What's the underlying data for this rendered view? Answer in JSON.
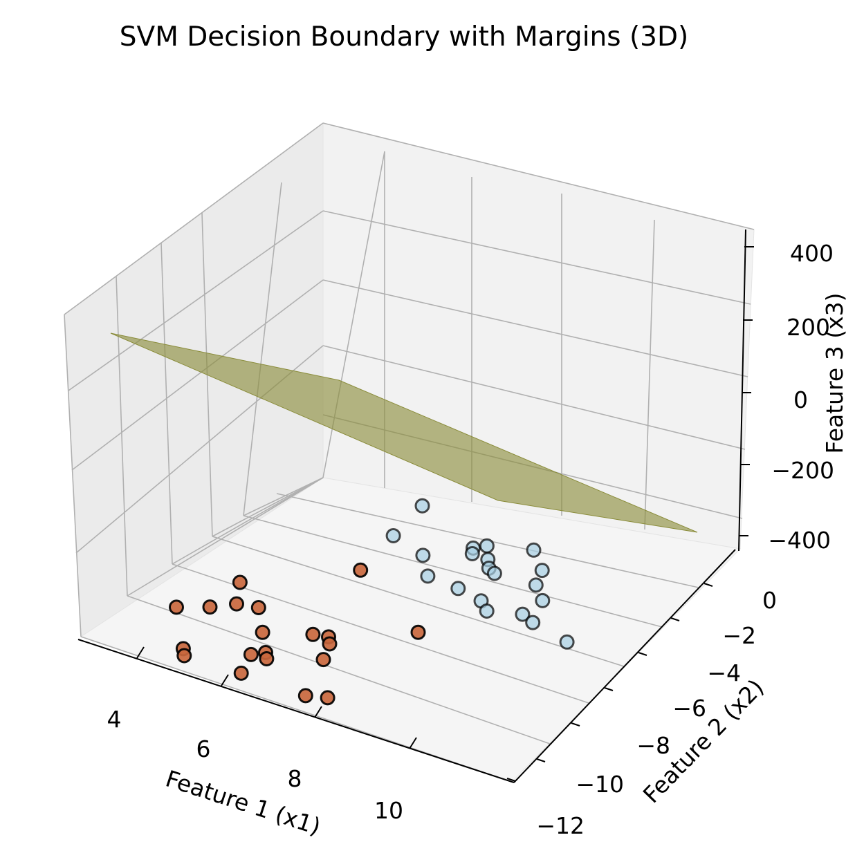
{
  "chart_data": {
    "type": "scatter",
    "projection": "3d",
    "title": "SVM Decision Boundary with Margins (3D)",
    "xlabel": "Feature 1 (x1)",
    "ylabel": "Feature 2 (x2)",
    "zlabel": "Feature 3 (x3)",
    "x_ticks": [
      "4",
      "6",
      "8",
      "10"
    ],
    "y_ticks": [
      "0",
      "−2",
      "−4",
      "−6",
      "−8",
      "−10",
      "−12"
    ],
    "z_ticks": [
      "400",
      "200",
      "0",
      "−200",
      "−400"
    ],
    "grid": true,
    "colors": {
      "class_0": "#c9673d",
      "class_1": "#a6cee3",
      "surface": "#8a8c3a",
      "marker_edge": "#000000"
    },
    "surface": {
      "plane": "decision boundary",
      "corners_z_approx": [
        120,
        10,
        -210,
        -330
      ]
    },
    "series": [
      {
        "class": 0,
        "points": [
          [
            4.0,
            -9.5,
            -60
          ],
          [
            4.6,
            -7.5,
            -90
          ],
          [
            4.8,
            -8.2,
            -120
          ],
          [
            5.2,
            -8.0,
            -130
          ],
          [
            4.3,
            -8.4,
            -160
          ],
          [
            4.5,
            -10.4,
            -160
          ],
          [
            4.6,
            -10.6,
            -170
          ],
          [
            5.6,
            -8.8,
            -150
          ],
          [
            5.7,
            -9.7,
            -170
          ],
          [
            5.9,
            -9.4,
            -175
          ],
          [
            6.5,
            -8.3,
            -140
          ],
          [
            6.8,
            -8.2,
            -140
          ],
          [
            6.9,
            -8.4,
            -150
          ],
          [
            7.0,
            -9.0,
            -165
          ],
          [
            7.2,
            -10.5,
            -190
          ],
          [
            7.6,
            -10.3,
            -190
          ],
          [
            6.4,
            -5.4,
            -100
          ],
          [
            8.2,
            -6.8,
            -150
          ],
          [
            6.0,
            -9.6,
            -180
          ],
          [
            5.8,
            -10.5,
            -180
          ]
        ]
      },
      {
        "class": 1,
        "points": [
          [
            7.0,
            -3.5,
            120
          ],
          [
            6.8,
            -4.6,
            50
          ],
          [
            7.6,
            -5.0,
            50
          ],
          [
            7.9,
            -5.5,
            10
          ],
          [
            8.3,
            -4.0,
            40
          ],
          [
            8.4,
            -4.3,
            50
          ],
          [
            8.6,
            -4.0,
            80
          ],
          [
            8.7,
            -4.2,
            30
          ],
          [
            8.8,
            -4.4,
            10
          ],
          [
            9.0,
            -4.6,
            20
          ],
          [
            8.6,
            -5.6,
            10
          ],
          [
            9.1,
            -5.6,
            -20
          ],
          [
            9.3,
            -5.8,
            -40
          ],
          [
            9.5,
            -3.7,
            100
          ],
          [
            9.8,
            -4.0,
            40
          ],
          [
            9.9,
            -4.6,
            30
          ],
          [
            10.2,
            -5.0,
            10
          ],
          [
            10.0,
            -5.6,
            -20
          ],
          [
            10.3,
            -5.8,
            -20
          ],
          [
            11.2,
            -6.2,
            -10
          ]
        ]
      }
    ]
  }
}
